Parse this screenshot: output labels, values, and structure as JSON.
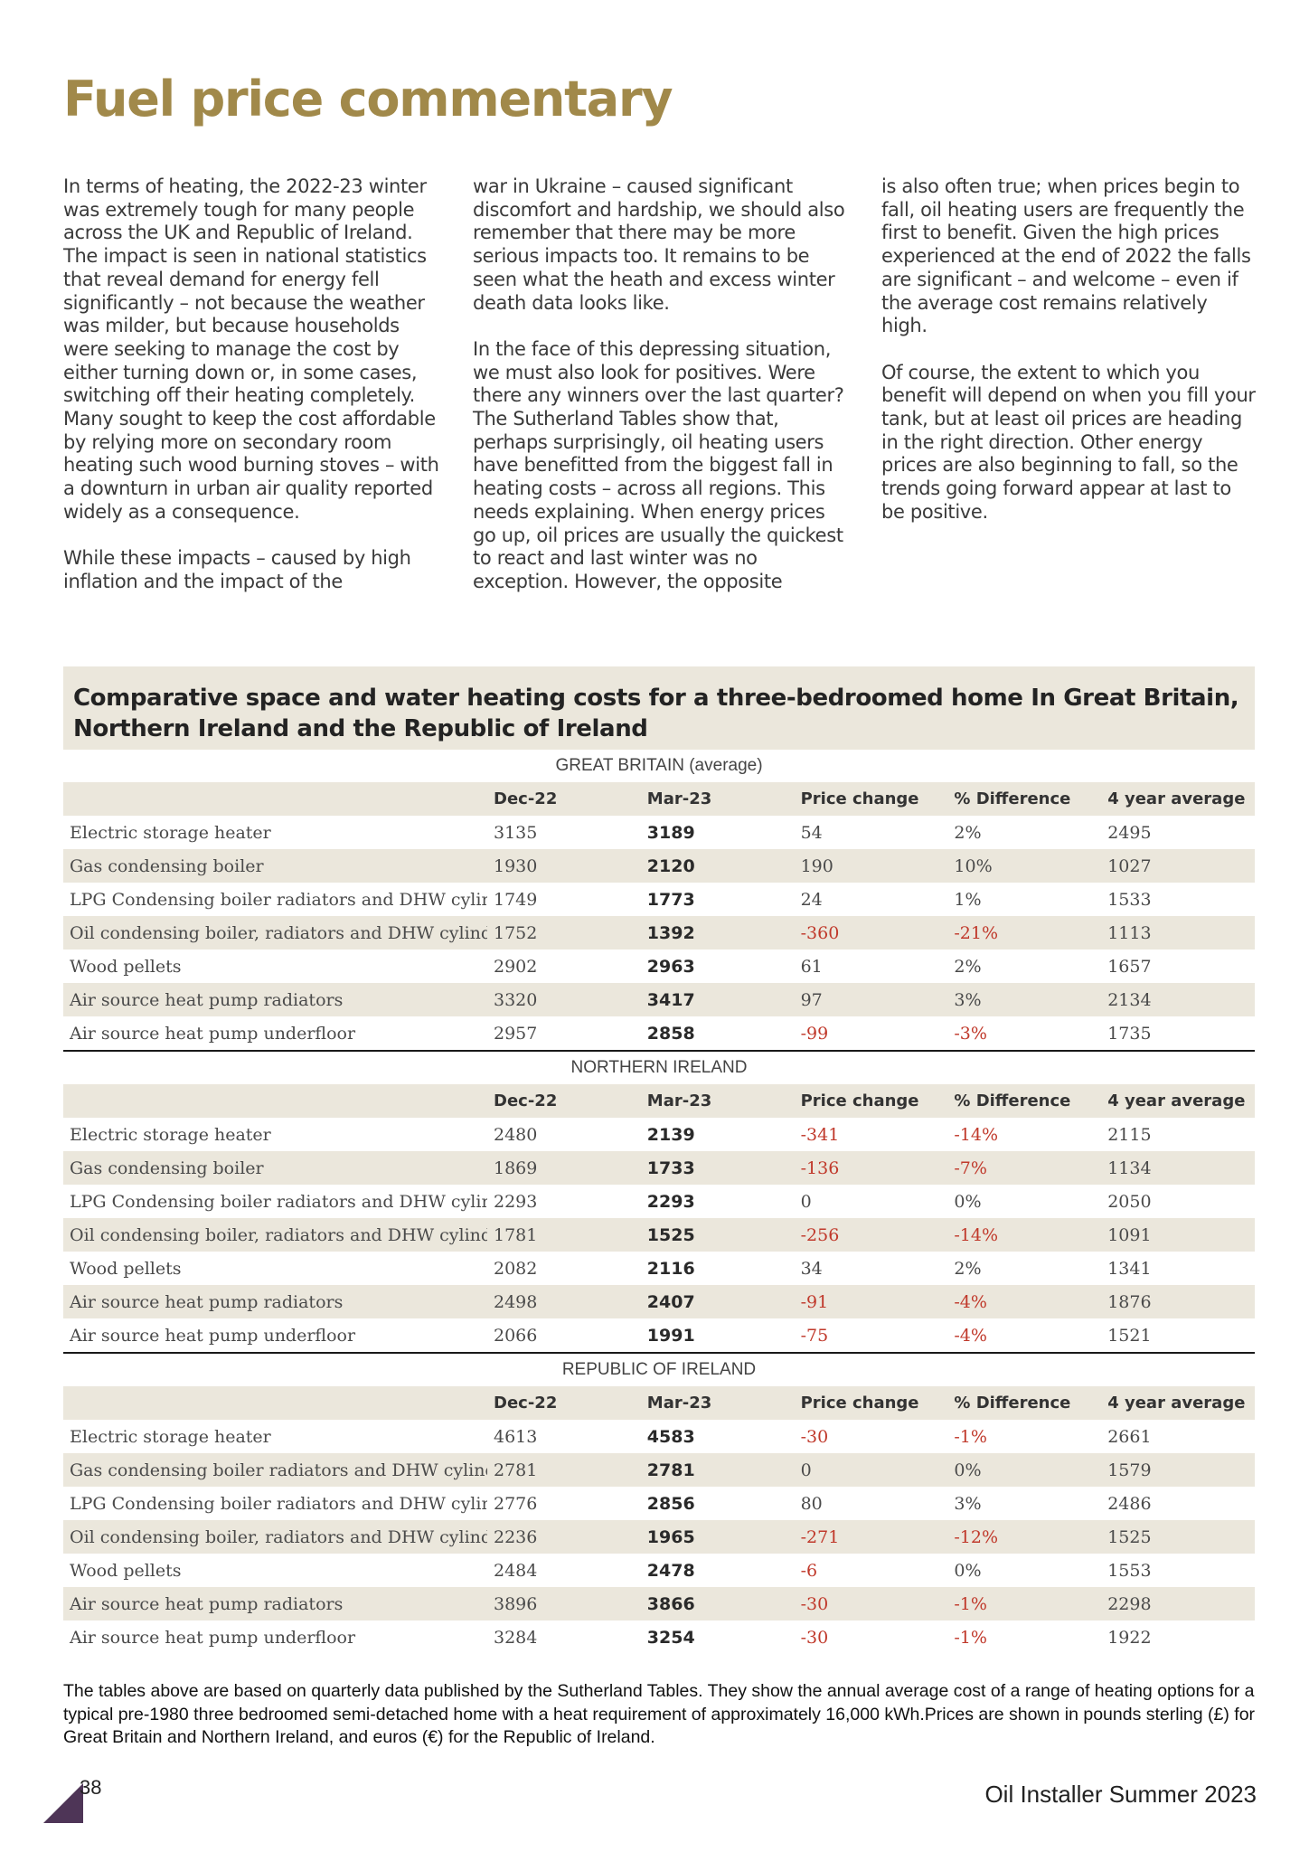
{
  "page": {
    "title": "Fuel price commentary",
    "page_number": "38",
    "publication": "Oil Installer Summer 2023"
  },
  "article": {
    "col1": [
      "In terms of heating, the 2022-23 winter was extremely tough for many people across the UK and Republic of Ireland. The impact is seen in national statistics that reveal demand for energy fell significantly – not because the weather was milder, but because households were seeking to manage the cost by either turning down or, in some cases, switching off their heating completely. Many sought to keep the cost affordable by relying more on secondary room heating such wood burning stoves – with a downturn in urban air quality reported widely as a consequence.",
      "While these impacts – caused by high inflation and the impact of the"
    ],
    "col2": [
      "war in Ukraine – caused significant discomfort and hardship, we should also remember that there may be more serious impacts too. It remains to be seen what the heath and excess winter death data looks like.",
      "In the face of this depressing situation, we must also look for positives. Were there any winners over the last quarter? The Sutherland Tables show that, perhaps surprisingly, oil heating users have benefitted from the biggest fall in heating costs – across all regions. This needs explaining. When energy prices go up, oil prices are usually the quickest to react and last winter was no exception. However, the opposite"
    ],
    "col3": [
      "is also often true; when prices begin to fall, oil heating users are frequently the first to benefit. Given the high prices experienced at the end of 2022 the falls are significant – and welcome – even if the average cost remains relatively high.",
      "Of course, the extent to which you benefit will depend on when you fill your tank, but at least oil prices are heading in the right direction. Other energy prices are also beginning to fall, so the trends going forward appear at last to be positive."
    ]
  },
  "table": {
    "title_line1": "Comparative space and water heating costs for a three-bedroomed home In Great Britain,",
    "title_line2": "Northern Ireland and the Republic of Ireland",
    "columns": [
      "",
      "Dec-22",
      "Mar-23",
      "Price change",
      "% Difference",
      "4 year average"
    ],
    "regions": [
      {
        "name": "GREAT BRITAIN (average)",
        "rows": [
          [
            "Electric storage heater",
            "3135",
            "3189",
            "54",
            "2%",
            "2495"
          ],
          [
            "Gas condensing boiler",
            "1930",
            "2120",
            "190",
            "10%",
            "1027"
          ],
          [
            "LPG Condensing boiler radiators and DHW cylinder",
            "1749",
            "1773",
            "24",
            "1%",
            "1533"
          ],
          [
            "Oil condensing boiler, radiators and DHW cylinder",
            "1752",
            "1392",
            "-360",
            "-21%",
            "1113"
          ],
          [
            "Wood pellets",
            "2902",
            "2963",
            "61",
            "2%",
            "1657"
          ],
          [
            "Air source heat pump radiators",
            "3320",
            "3417",
            "97",
            "3%",
            "2134"
          ],
          [
            "Air source heat pump underfloor",
            "2957",
            "2858",
            "-99",
            "-3%",
            "1735"
          ]
        ]
      },
      {
        "name": "NORTHERN IRELAND",
        "rows": [
          [
            "Electric storage heater",
            "2480",
            "2139",
            "-341",
            "-14%",
            "2115"
          ],
          [
            "Gas condensing boiler",
            "1869",
            "1733",
            "-136",
            "-7%",
            "1134"
          ],
          [
            "LPG Condensing boiler radiators and DHW cylinder",
            "2293",
            "2293",
            "0",
            "0%",
            "2050"
          ],
          [
            "Oil condensing boiler, radiators and DHW cylinder",
            "1781",
            "1525",
            "-256",
            "-14%",
            "1091"
          ],
          [
            "Wood pellets",
            "2082",
            "2116",
            "34",
            "2%",
            "1341"
          ],
          [
            "Air source heat pump radiators",
            "2498",
            "2407",
            "-91",
            "-4%",
            "1876"
          ],
          [
            "Air source heat pump underfloor",
            "2066",
            "1991",
            "-75",
            "-4%",
            "1521"
          ]
        ]
      },
      {
        "name": "REPUBLIC OF IRELAND",
        "rows": [
          [
            "Electric storage heater",
            "4613",
            "4583",
            "-30",
            "-1%",
            "2661"
          ],
          [
            "Gas condensing boiler radiators and DHW cylinder",
            "2781",
            "2781",
            "0",
            "0%",
            "1579"
          ],
          [
            "LPG Condensing boiler radiators and DHW cylinder",
            "2776",
            "2856",
            "80",
            "3%",
            "2486"
          ],
          [
            "Oil condensing boiler, radiators and DHW cylinder",
            "2236",
            "1965",
            "-271",
            "-12%",
            "1525"
          ],
          [
            "Wood pellets",
            "2484",
            "2478",
            "-6",
            "0%",
            "1553"
          ],
          [
            "Air source heat pump radiators",
            "3896",
            "3866",
            "-30",
            "-1%",
            "2298"
          ],
          [
            "Air source heat pump underfloor",
            "3284",
            "3254",
            "-30",
            "-1%",
            "1922"
          ]
        ]
      }
    ],
    "colors": {
      "negative": "#c0392b",
      "shade": "#ebe7dc",
      "title": "#a1894a",
      "corner": "#4e3557"
    }
  },
  "note": "The tables above are based on quarterly data published by the Sutherland Tables. They show the annual average cost of a range of heating options for a typical pre-1980 three bedroomed semi-detached home with a heat requirement of approximately 16,000 kWh.Prices are shown in pounds sterling (£) for Great Britain and Northern Ireland, and euros (€) for the Republic of Ireland."
}
